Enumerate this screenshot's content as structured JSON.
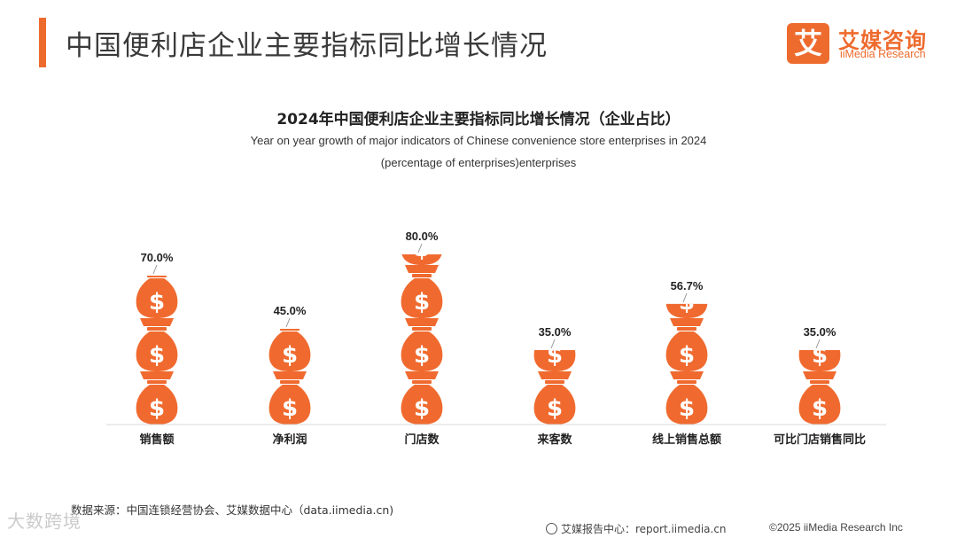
{
  "header": {
    "title": "中国便利店企业主要指标同比增长情况",
    "logo_mark": "艾",
    "logo_cn": "艾媒咨询",
    "logo_en": "iiMedia Research"
  },
  "colors": {
    "accent": "#ee6b2e",
    "bag": "#f06a2f",
    "baseline": "#d9d9d9"
  },
  "icons": {
    "bag": "money-bag-icon"
  },
  "chart_data": {
    "type": "bar",
    "title": "2024年中国便利店企业主要指标同比增长情况（企业占比）",
    "subtitle_line1": "Year on year growth of major indicators of Chinese convenience store enterprises in 2024",
    "subtitle_line2": "(percentage of enterprises)enterprises",
    "categories": [
      "销售额",
      "净利润",
      "门店数",
      "来客数",
      "线上销售总额",
      "可比门店销售同比"
    ],
    "values": [
      70.0,
      45.0,
      80.0,
      35.0,
      56.7,
      35.0
    ],
    "value_labels": [
      "70.0%",
      "45.0%",
      "80.0%",
      "35.0%",
      "56.7%",
      "35.0%"
    ],
    "unit": "%",
    "ylim": [
      0,
      100
    ],
    "grid": false,
    "legend": "none",
    "bar_style": "stacked money-bag icons"
  },
  "footer": {
    "source": "数据来源：中国连锁经营协会、艾媒数据中心（data.iimedia.cn)",
    "report_center": "艾媒报告中心：report.iimedia.cn",
    "copyright": "©2025  iiMedia Research  Inc",
    "watermark": "大数跨境"
  }
}
